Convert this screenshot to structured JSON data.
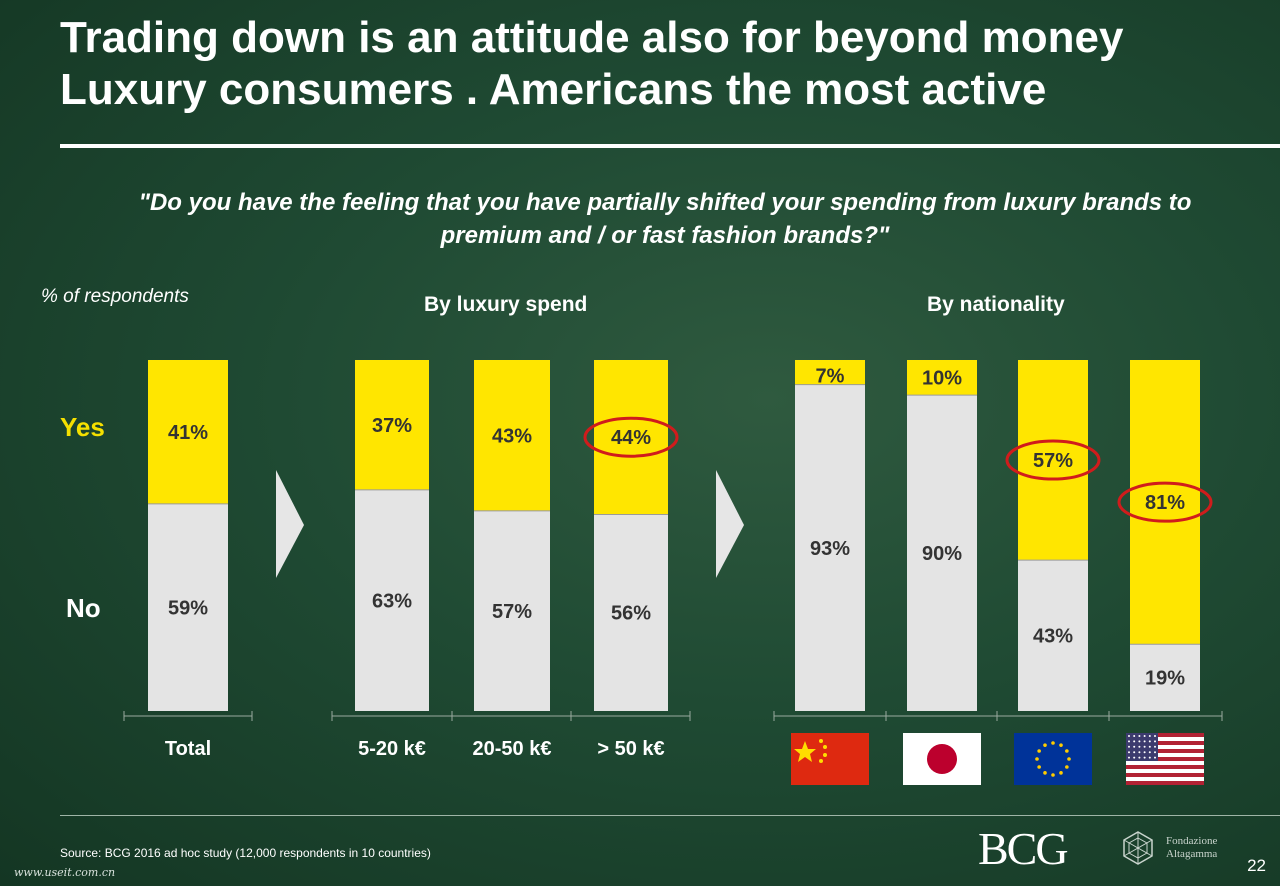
{
  "title_line1": "Trading down is an attitude also for beyond money",
  "title_line2": "Luxury consumers . Americans the most active",
  "question": "\"Do you have the feeling that you have partially shifted your spending from luxury brands to premium and / or fast fashion brands?\"",
  "ylabel": "% of respondents",
  "section_spend": "By luxury spend",
  "section_nationality": "By nationality",
  "legend": {
    "yes": "Yes",
    "no": "No"
  },
  "colors": {
    "yes": "#ffe600",
    "no": "#e4e4e4",
    "legend_yes": "#f5e000",
    "highlight": "#d01c1c"
  },
  "chart_data": {
    "type": "bar",
    "stacked": true,
    "percent_of": "respondents",
    "categories": [
      "Total",
      "5-20 k€",
      "20-50 k€",
      "> 50 k€",
      "China",
      "Japan",
      "EU",
      "USA"
    ],
    "category_icons": [
      "",
      "",
      "",
      "",
      "china-flag-icon",
      "japan-flag-icon",
      "eu-flag-icon",
      "usa-flag-icon"
    ],
    "series": [
      {
        "name": "Yes",
        "values": [
          41,
          37,
          43,
          44,
          7,
          10,
          57,
          81
        ]
      },
      {
        "name": "No",
        "values": [
          59,
          63,
          57,
          56,
          93,
          90,
          43,
          19
        ]
      }
    ],
    "highlighted_yes": [
      false,
      false,
      false,
      true,
      false,
      false,
      true,
      true
    ],
    "ylim": [
      0,
      100
    ]
  },
  "source": "Source: BCG 2016 ad hoc study (12,000 respondents in 10 countries)",
  "logo_bcg": "BCG",
  "logo_fondazione": [
    "Fondazione",
    "Altagamma"
  ],
  "watermark": "www.useit.com.cn",
  "page_number": "22"
}
